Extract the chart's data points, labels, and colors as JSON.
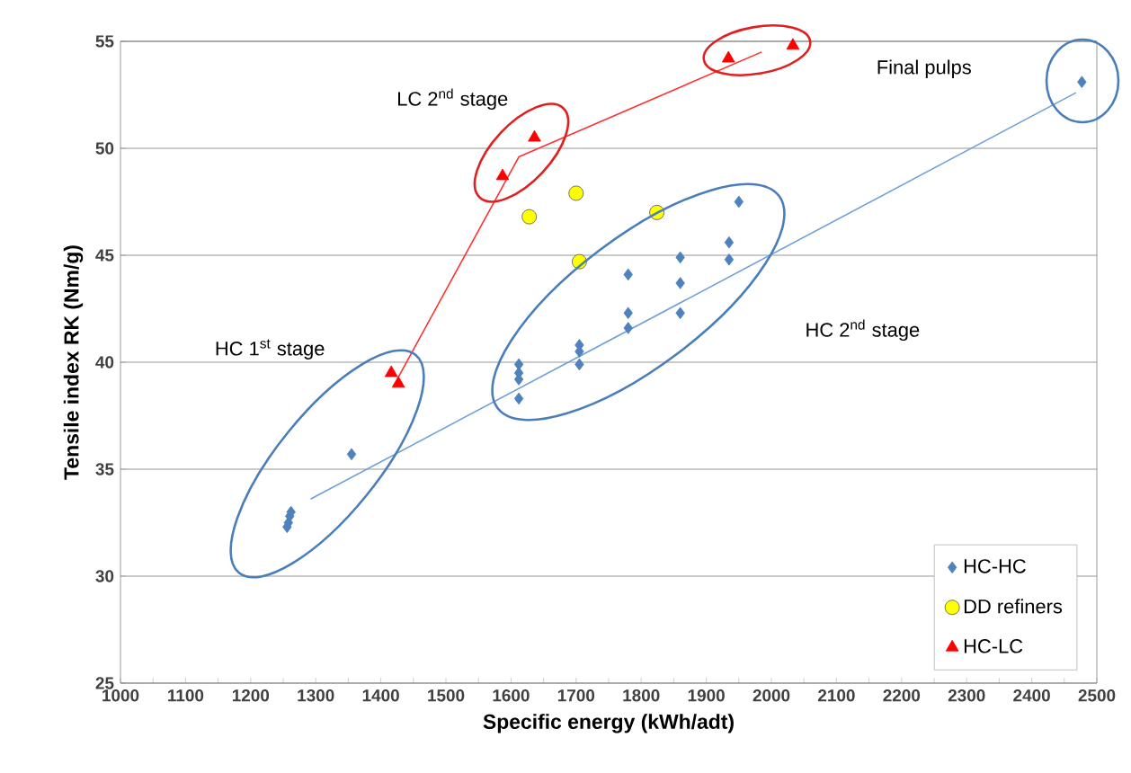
{
  "chart_data": {
    "type": "scatter",
    "xlabel": "Specific energy (kWh/adt)",
    "ylabel": "Tensile index RK (Nm/g)",
    "xlim": [
      1000,
      2500
    ],
    "ylim": [
      25,
      55
    ],
    "xticks": [
      1000,
      1100,
      1200,
      1300,
      1400,
      1500,
      1600,
      1700,
      1800,
      1900,
      2000,
      2100,
      2200,
      2300,
      2400,
      2500
    ],
    "yticks": [
      25,
      30,
      35,
      40,
      45,
      50,
      55
    ],
    "grid": "y",
    "legend": "bottom right",
    "series": [
      {
        "name": "HC-HC",
        "color": "#4f81bd",
        "marker": "diamond",
        "x": [
          1256,
          1258,
          1260,
          1262,
          1355,
          1612,
          1612,
          1612,
          1612,
          1705,
          1705,
          1705,
          1780,
          1780,
          1780,
          1860,
          1860,
          1860,
          1935,
          1935,
          1950,
          2477
        ],
        "values": [
          32.3,
          32.5,
          32.8,
          33.0,
          35.7,
          39.9,
          39.5,
          39.2,
          38.3,
          40.8,
          40.5,
          39.9,
          44.1,
          42.3,
          41.6,
          44.9,
          43.7,
          42.3,
          45.6,
          44.8,
          47.5,
          53.1
        ]
      },
      {
        "name": "DD refiners",
        "color": "#ffff00",
        "marker": "circle",
        "x": [
          1628,
          1700,
          1705,
          1824
        ],
        "values": [
          46.8,
          47.9,
          44.7,
          47.0
        ]
      },
      {
        "name": "HC-LC",
        "color": "#ff0000",
        "marker": "triangle",
        "x": [
          1416,
          1427,
          1587,
          1636,
          1934,
          2033
        ],
        "values": [
          39.5,
          39.0,
          48.7,
          50.5,
          54.2,
          54.8
        ]
      },
      {
        "type": "line",
        "color": "#ff3030",
        "x": [
          1425,
          1612,
          1985
        ],
        "values": [
          39.2,
          49.6,
          54.5
        ]
      },
      {
        "type": "line",
        "color": "#6fa0d8",
        "x": [
          1292,
          2468
        ],
        "values": [
          33.6,
          52.6
        ]
      }
    ],
    "annotations": [
      "HC 1$^{st}$ stage",
      "LC 2$^{nd}$ stage",
      "HC 2$^{nd}$ stage",
      "Final pulps"
    ]
  }
}
